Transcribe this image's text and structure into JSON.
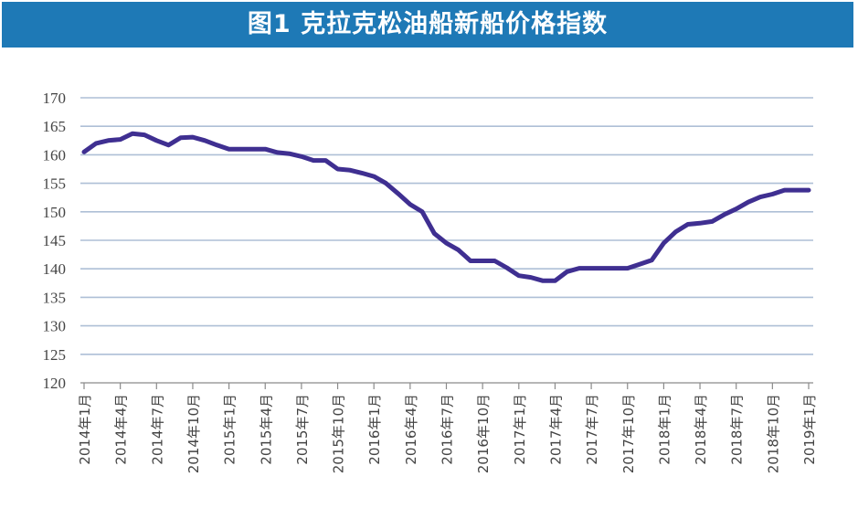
{
  "title": "图1  克拉克松油船新船价格指数",
  "colors": {
    "title_bg": "#1e79b6",
    "title_text": "#ffffff",
    "line": "#3f2f91",
    "grid": "#aebfd6",
    "axis": "#8a8a8a",
    "tick_text": "#444444"
  },
  "chart_data": {
    "type": "line",
    "title": "图1  克拉克松油船新船价格指数",
    "xlabel": "",
    "ylabel": "",
    "ylim": [
      120,
      170
    ],
    "yticks": [
      120,
      125,
      130,
      135,
      140,
      145,
      150,
      155,
      160,
      165,
      170
    ],
    "grid": "horizontal",
    "legend": "none",
    "xtick_labels": [
      "2014年1月",
      "2014年4月",
      "2014年7月",
      "2014年10月",
      "2015年1月",
      "2015年4月",
      "2015年7月",
      "2015年10月",
      "2016年1月",
      "2016年4月",
      "2016年7月",
      "2016年10月",
      "2017年1月",
      "2017年4月",
      "2017年7月",
      "2017年10月",
      "2018年1月",
      "2018年4月",
      "2018年7月",
      "2018年10月",
      "2019年1月"
    ],
    "categories": [
      "2014年1月",
      "2014年2月",
      "2014年3月",
      "2014年4月",
      "2014年5月",
      "2014年6月",
      "2014年7月",
      "2014年8月",
      "2014年9月",
      "2014年10月",
      "2014年11月",
      "2014年12月",
      "2015年1月",
      "2015年2月",
      "2015年3月",
      "2015年4月",
      "2015年5月",
      "2015年6月",
      "2015年7月",
      "2015年8月",
      "2015年9月",
      "2015年10月",
      "2015年11月",
      "2015年12月",
      "2016年1月",
      "2016年2月",
      "2016年3月",
      "2016年4月",
      "2016年5月",
      "2016年6月",
      "2016年7月",
      "2016年8月",
      "2016年9月",
      "2016年10月",
      "2016年11月",
      "2016年12月",
      "2017年1月",
      "2017年2月",
      "2017年3月",
      "2017年4月",
      "2017年5月",
      "2017年6月",
      "2017年7月",
      "2017年8月",
      "2017年9月",
      "2017年10月",
      "2017年11月",
      "2017年12月",
      "2018年1月",
      "2018年2月",
      "2018年3月",
      "2018年4月",
      "2018年5月",
      "2018年6月",
      "2018年7月",
      "2018年8月",
      "2018年9月",
      "2018年10月",
      "2018年11月",
      "2018年12月",
      "2019年1月"
    ],
    "series": [
      {
        "values": [
          160.5,
          162.0,
          162.5,
          162.7,
          163.7,
          163.5,
          162.5,
          161.7,
          163.0,
          163.1,
          162.5,
          161.7,
          161.0,
          161.0,
          161.0,
          161.0,
          160.4,
          160.2,
          159.7,
          159.0,
          159.0,
          157.5,
          157.3,
          156.8,
          156.2,
          155.0,
          153.2,
          151.3,
          150.0,
          146.2,
          144.5,
          143.3,
          141.4,
          141.4,
          141.4,
          140.2,
          138.8,
          138.5,
          137.9,
          137.9,
          139.5,
          140.1,
          140.1,
          140.1,
          140.1,
          140.1,
          140.8,
          141.5,
          144.5,
          146.5,
          147.8,
          148.0,
          148.3,
          149.5,
          150.5,
          151.7,
          152.6,
          153.1,
          153.8,
          153.8,
          153.8
        ]
      }
    ]
  }
}
